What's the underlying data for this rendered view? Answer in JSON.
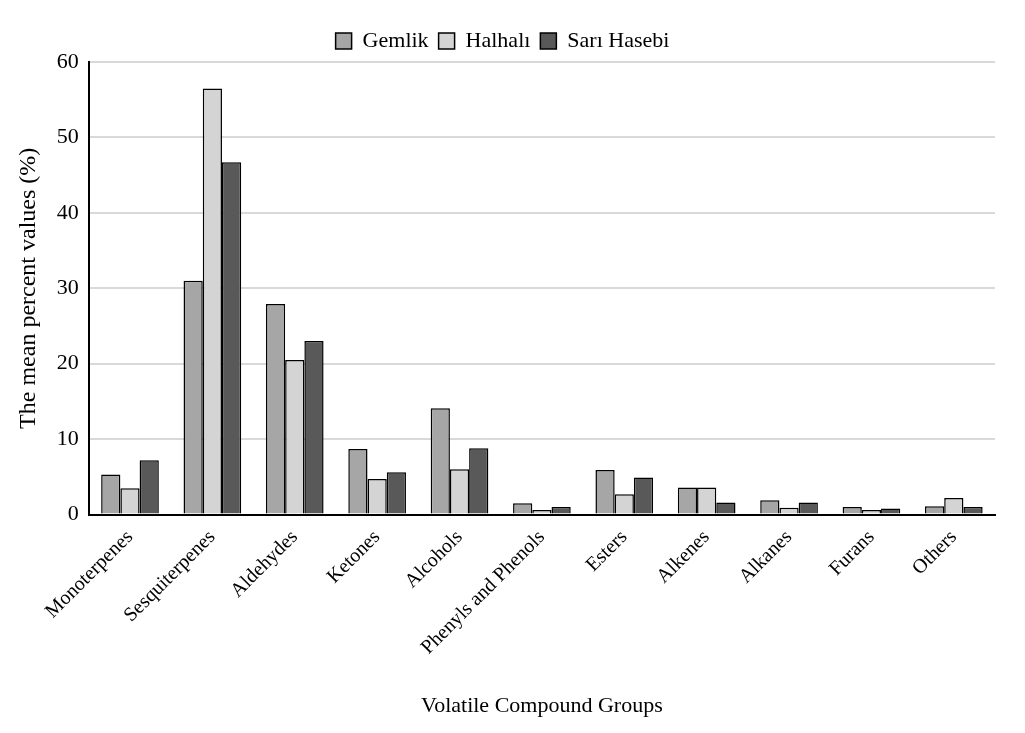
{
  "chart_data": {
    "type": "bar",
    "xlabel": "Volatile Compound Groups",
    "ylabel": "The mean percent values (%)",
    "categories": [
      "Monoterpenes",
      "Sesquiterpenes",
      "Aldehydes",
      "Ketones",
      "Alcohols",
      "Phenyls and Phenols",
      "Esters",
      "Alkenes",
      "Alkanes",
      "Furans",
      "Others"
    ],
    "series": [
      {
        "name": "Gemlik",
        "color": "#a6a6a6",
        "values": [
          5.3,
          31,
          27.9,
          8.7,
          14.1,
          1.5,
          5.9,
          3.6,
          1.9,
          1.0,
          1.1
        ]
      },
      {
        "name": "Halhalı",
        "color": "#d4d4d4",
        "values": [
          3.5,
          56.5,
          20.5,
          4.7,
          6,
          0.6,
          2.7,
          3.6,
          0.9,
          0.6,
          2.2
        ]
      },
      {
        "name": "Sarı Hasebi",
        "color": "#595959",
        "values": [
          7.2,
          46.7,
          23,
          5.6,
          8.8,
          1.0,
          4.9,
          1.6,
          1.6,
          0.8,
          1.0
        ]
      }
    ],
    "ylim": [
      0,
      60
    ],
    "yticks": [
      0,
      10,
      20,
      30,
      40,
      50,
      60
    ],
    "grid": "y",
    "legend": "top right"
  }
}
